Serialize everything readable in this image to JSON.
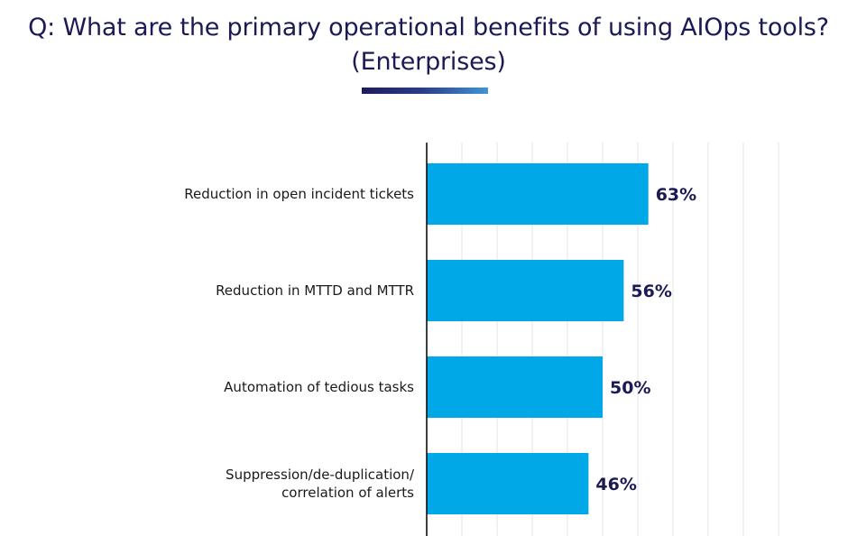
{
  "chart_data": {
    "type": "bar",
    "orientation": "horizontal",
    "title_lines": [
      "Q: What are the primary operational benefits of using AIOps tools?",
      "(Enterprises)"
    ],
    "categories": [
      [
        "Reduction in open incident tickets"
      ],
      [
        "Reduction in MTTD and MTTR"
      ],
      [
        "Automation of tedious tasks"
      ],
      [
        "Suppression/de-duplication/",
        "correlation of alerts"
      ]
    ],
    "values": [
      63,
      56,
      50,
      46
    ],
    "value_labels": [
      "63%",
      "56%",
      "50%",
      "46%"
    ],
    "xlim": [
      0,
      100
    ],
    "grid": true,
    "colors": {
      "bar": "#00a8e8",
      "grid": "#e3e3e3",
      "axis": "#000000",
      "title": "#1b1a55",
      "value_label": "#1b1a55"
    }
  }
}
